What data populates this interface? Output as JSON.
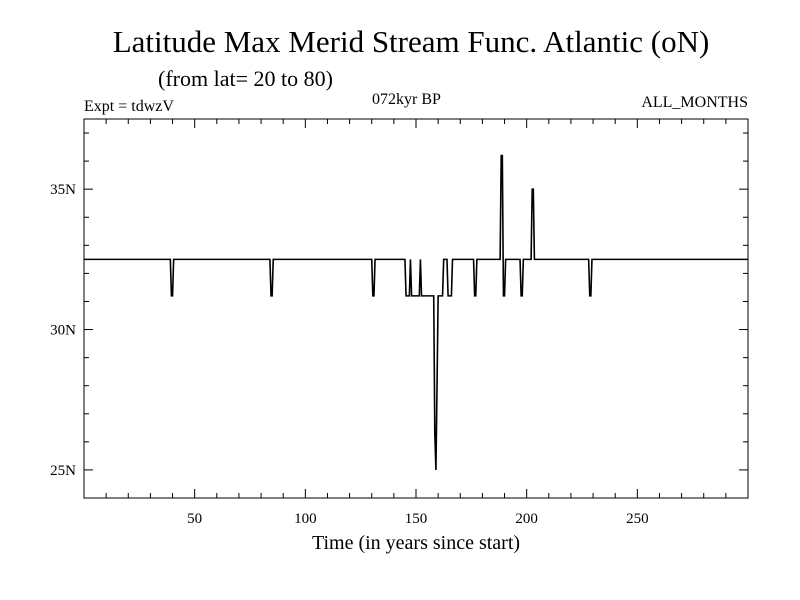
{
  "header": {
    "title": "Latitude Max Merid Stream Func. Atlantic (oN)",
    "subtitle": "(from lat= 20 to 80)",
    "experiment": "Expt = tdwzV",
    "period": "072kyr BP",
    "months": "ALL_MONTHS"
  },
  "chart_data": {
    "type": "line",
    "title": "Latitude Max Merid Stream Func. Atlantic (oN)",
    "subtitle": "(from lat= 20 to 80)",
    "xlabel": "Time (in years since start)",
    "ylabel": "",
    "xlim": [
      0,
      300
    ],
    "ylim": [
      24,
      37.5
    ],
    "x_ticks": [
      50,
      100,
      150,
      200,
      250
    ],
    "x_tick_labels": [
      "50",
      "100",
      "150",
      "200",
      "250"
    ],
    "y_ticks": [
      25,
      30,
      35
    ],
    "y_tick_labels": [
      "25N",
      "30N",
      "35N"
    ],
    "grid": false,
    "series": [
      {
        "x": [
          0,
          39,
          39.5,
          40,
          40.5,
          41,
          50,
          84,
          84.5,
          85,
          85.5,
          86,
          130,
          130.5,
          131,
          131.5,
          132,
          145,
          145.5,
          146,
          147,
          147.5,
          148,
          151.5,
          152,
          152.5,
          153,
          153.5,
          154,
          158,
          158.5,
          159,
          159.5,
          160,
          160.5,
          161,
          162,
          162.5,
          163,
          164,
          164.5,
          165,
          166,
          166.5,
          167,
          176,
          176.5,
          177,
          177.5,
          178,
          188,
          188.5,
          189,
          189.5,
          190,
          190.5,
          191,
          191.5,
          192,
          197,
          197.5,
          198,
          198.5,
          199,
          202,
          202.5,
          203,
          203.5,
          204,
          205,
          228,
          228.5,
          229,
          229.5,
          230,
          300
        ],
        "y": [
          32.5,
          32.5,
          31.2,
          31.2,
          32.5,
          32.5,
          32.5,
          32.5,
          31.2,
          31.2,
          32.5,
          32.5,
          32.5,
          31.2,
          31.2,
          32.5,
          32.5,
          32.5,
          31.2,
          31.2,
          31.2,
          32.5,
          31.2,
          31.2,
          32.5,
          31.2,
          31.2,
          31.2,
          31.2,
          31.2,
          26.3,
          25.0,
          28.0,
          31.2,
          31.2,
          31.2,
          31.2,
          32.5,
          32.5,
          32.5,
          31.2,
          31.2,
          31.2,
          32.5,
          32.5,
          32.5,
          31.2,
          31.2,
          32.5,
          32.5,
          32.5,
          36.2,
          36.2,
          31.2,
          31.2,
          32.5,
          32.5,
          32.5,
          32.5,
          32.5,
          31.2,
          31.2,
          32.5,
          32.5,
          32.5,
          35.0,
          35.0,
          32.5,
          32.5,
          32.5,
          32.5,
          31.2,
          31.2,
          32.5,
          32.5,
          32.5
        ]
      }
    ]
  }
}
